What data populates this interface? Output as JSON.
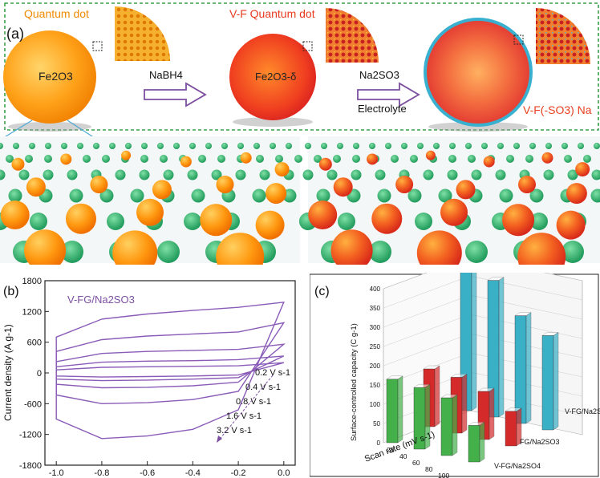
{
  "panel_a": {
    "label": "(a)",
    "qd1_title": "Quantum dot",
    "qd1_formula": "Fe2O3",
    "arrow1_label": "NaBH4",
    "qd2_title": "V-F Quantum dot",
    "qd2_formula": "Fe2O3-δ",
    "arrow2_label_top": "Na2SO3",
    "arrow2_label_bottom": "Electrolyte",
    "qd3_title": "V-F(-SO3) Na"
  },
  "panel_b": {
    "label": "(b)",
    "legend": "V-FG/Na2SO3",
    "ylabel": "Current density (A g-1)",
    "yticks": [
      "1800",
      "1200",
      "600",
      "0",
      "-600",
      "-1200",
      "-1800"
    ],
    "xticks": [
      "-1.0",
      "-0.8",
      "-0.6",
      "-0.4",
      "-0.2",
      "0.0"
    ],
    "scan_labels": [
      "0.2 V s-1",
      "0.4 V s-1",
      "0.8 V s-1",
      "1.6 V s-1",
      "3.2 V s-1"
    ]
  },
  "panel_c": {
    "label": "(c)",
    "zlabel": "Surface-controlled capacity (C g-1)",
    "xlabel": "Scan rate (mV s-1)",
    "zticks": [
      "0",
      "50",
      "100",
      "150",
      "200",
      "250",
      "300",
      "350",
      "400"
    ],
    "xticks": [
      "20",
      "40",
      "60",
      "80",
      "100"
    ],
    "series_labels": [
      "V-FG/Na2SO3",
      "FG/Na2SO3",
      "V-FG/Na2SO4"
    ]
  },
  "chart_data": [
    {
      "type": "line",
      "title": "",
      "legend": [
        "V-FG/Na2SO3"
      ],
      "xlabel": "",
      "ylabel": "Current density (A g-1)",
      "xlim": [
        -1.05,
        0.05
      ],
      "ylim": [
        -1800,
        1800
      ],
      "series": [
        {
          "name": "0.2 V s-1",
          "x": [
            -1.0,
            -0.8,
            -0.6,
            -0.4,
            -0.2,
            0.0,
            -0.2,
            -0.4,
            -0.6,
            -0.8,
            -1.0
          ],
          "y": [
            60,
            110,
            120,
            130,
            140,
            200,
            -40,
            -60,
            -70,
            -80,
            -60
          ]
        },
        {
          "name": "0.4 V s-1",
          "x": [
            -1.0,
            -0.8,
            -0.6,
            -0.4,
            -0.2,
            0.0,
            -0.2,
            -0.4,
            -0.6,
            -0.8,
            -1.0
          ],
          "y": [
            120,
            210,
            230,
            240,
            260,
            330,
            -90,
            -120,
            -140,
            -150,
            -120
          ]
        },
        {
          "name": "0.8 V s-1",
          "x": [
            -1.0,
            -0.8,
            -0.6,
            -0.4,
            -0.2,
            0.0,
            -0.2,
            -0.4,
            -0.6,
            -0.8,
            -1.0
          ],
          "y": [
            220,
            380,
            420,
            440,
            460,
            560,
            -180,
            -250,
            -280,
            -290,
            -220
          ]
        },
        {
          "name": "1.6 V s-1",
          "x": [
            -1.0,
            -0.8,
            -0.6,
            -0.4,
            -0.2,
            0.0,
            -0.2,
            -0.4,
            -0.6,
            -0.8,
            -1.0
          ],
          "y": [
            420,
            650,
            720,
            760,
            800,
            980,
            -360,
            -520,
            -580,
            -600,
            -430
          ]
        },
        {
          "name": "3.2 V s-1",
          "x": [
            -1.0,
            -0.8,
            -0.6,
            -0.4,
            -0.2,
            0.0,
            -0.2,
            -0.4,
            -0.6,
            -0.8,
            -1.0
          ],
          "y": [
            700,
            1050,
            1150,
            1220,
            1280,
            1380,
            -720,
            -1100,
            -1230,
            -1280,
            -900
          ]
        }
      ]
    },
    {
      "type": "bar",
      "title": "",
      "xlabel": "Scan rate (mV s-1)",
      "ylabel": "Surface-controlled capacity (C g-1)",
      "ylim": [
        0,
        400
      ],
      "categories": [
        "20",
        "40",
        "60",
        "80",
        "100"
      ],
      "series": [
        {
          "name": "V-FG/Na2SO4",
          "color": "#43b04a",
          "values": [
            165,
            160,
            150,
            95,
            0
          ]
        },
        {
          "name": "FG/Na2SO3",
          "color": "#d42a2a",
          "values": [
            150,
            145,
            125,
            90,
            0
          ]
        },
        {
          "name": "V-FG/Na2SO3",
          "color": "#3ab0c6",
          "values": [
            395,
            355,
            280,
            245,
            0
          ]
        }
      ]
    }
  ]
}
